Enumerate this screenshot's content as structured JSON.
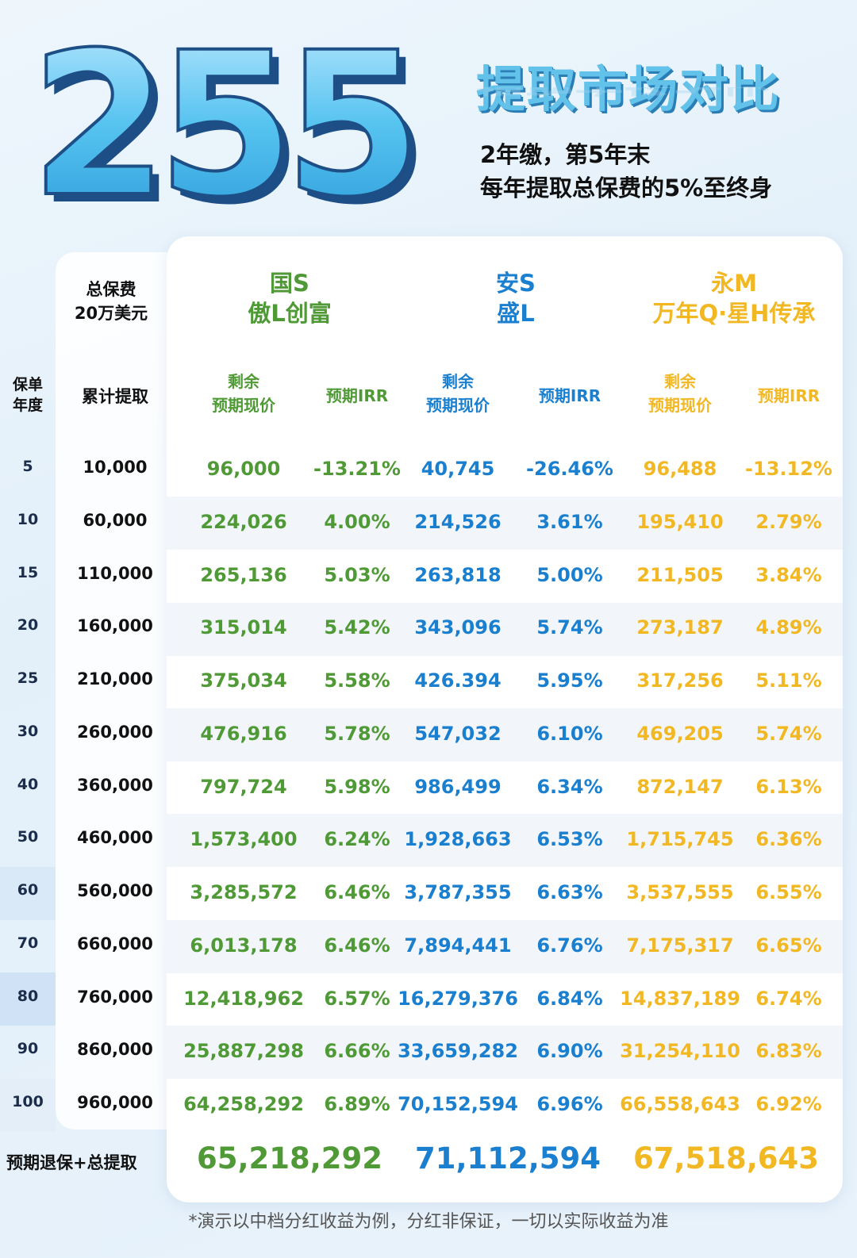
{
  "header": {
    "big_number": "255",
    "title": "提取市场对比",
    "subtitle_line1": "2年缴，第5年末",
    "subtitle_line2": "每年提取总保费的5%至终身"
  },
  "table": {
    "premium_label_line1": "总保费",
    "premium_label_line2": "20万美元",
    "companies": [
      {
        "line1": "国S",
        "line2": "傲L创富",
        "color": "#4f9a36"
      },
      {
        "line1": "安S",
        "line2": "盛L",
        "color": "#1a7fcf"
      },
      {
        "line1": "永M",
        "line2": "万年Q·星H传承",
        "color": "#f2b824"
      }
    ],
    "year_header_line1": "保单",
    "year_header_line2": "年度",
    "cumulative_header": "累计提取",
    "value_header_line1": "剩余",
    "value_header_line2": "预期现价",
    "irr_header": "预期IRR",
    "rows": [
      {
        "year": "5",
        "cum": "10,000",
        "v1": "96,000",
        "i1": "-13.21%",
        "v2": "40,745",
        "i2": "-26.46%",
        "v3": "96,488",
        "i3": "-13.12%"
      },
      {
        "year": "10",
        "cum": "60,000",
        "v1": "224,026",
        "i1": "4.00%",
        "v2": "214,526",
        "i2": "3.61%",
        "v3": "195,410",
        "i3": "2.79%"
      },
      {
        "year": "15",
        "cum": "110,000",
        "v1": "265,136",
        "i1": "5.03%",
        "v2": "263,818",
        "i2": "5.00%",
        "v3": "211,505",
        "i3": "3.84%"
      },
      {
        "year": "20",
        "cum": "160,000",
        "v1": "315,014",
        "i1": "5.42%",
        "v2": "343,096",
        "i2": "5.74%",
        "v3": "273,187",
        "i3": "4.89%"
      },
      {
        "year": "25",
        "cum": "210,000",
        "v1": "375,034",
        "i1": "5.58%",
        "v2": "426.394",
        "i2": "5.95%",
        "v3": "317,256",
        "i3": "5.11%"
      },
      {
        "year": "30",
        "cum": "260,000",
        "v1": "476,916",
        "i1": "5.78%",
        "v2": "547,032",
        "i2": "6.10%",
        "v3": "469,205",
        "i3": "5.74%"
      },
      {
        "year": "40",
        "cum": "360,000",
        "v1": "797,724",
        "i1": "5.98%",
        "v2": "986,499",
        "i2": "6.34%",
        "v3": "872,147",
        "i3": "6.13%"
      },
      {
        "year": "50",
        "cum": "460,000",
        "v1": "1,573,400",
        "i1": "6.24%",
        "v2": "1,928,663",
        "i2": "6.53%",
        "v3": "1,715,745",
        "i3": "6.36%"
      },
      {
        "year": "60",
        "cum": "560,000",
        "v1": "3,285,572",
        "i1": "6.46%",
        "v2": "3,787,355",
        "i2": "6.63%",
        "v3": "3,537,555",
        "i3": "6.55%"
      },
      {
        "year": "70",
        "cum": "660,000",
        "v1": "6,013,178",
        "i1": "6.46%",
        "v2": "7,894,441",
        "i2": "6.76%",
        "v3": "7,175,317",
        "i3": "6.65%"
      },
      {
        "year": "80",
        "cum": "760,000",
        "v1": "12,418,962",
        "i1": "6.57%",
        "v2": "16,279,376",
        "i2": "6.84%",
        "v3": "14,837,189",
        "i3": "6.74%"
      },
      {
        "year": "90",
        "cum": "860,000",
        "v1": "25,887,298",
        "i1": "6.66%",
        "v2": "33,659,282",
        "i2": "6.90%",
        "v3": "31,254,110",
        "i3": "6.83%"
      },
      {
        "year": "100",
        "cum": "960,000",
        "v1": "64,258,292",
        "i1": "6.89%",
        "v2": "70,152,594",
        "i2": "6.96%",
        "v3": "66,558,643",
        "i3": "6.92%"
      }
    ],
    "total_label": "预期退保+总提取",
    "totals": [
      "65,218,292",
      "71,112,594",
      "67,518,643"
    ]
  },
  "footnote": "*演示以中档分红收益为例，分红非保证，一切以实际收益为准",
  "colors": {
    "green": "#4f9a36",
    "blue": "#1a7fcf",
    "gold": "#f2b824",
    "title_blue": "#63c2ea"
  }
}
